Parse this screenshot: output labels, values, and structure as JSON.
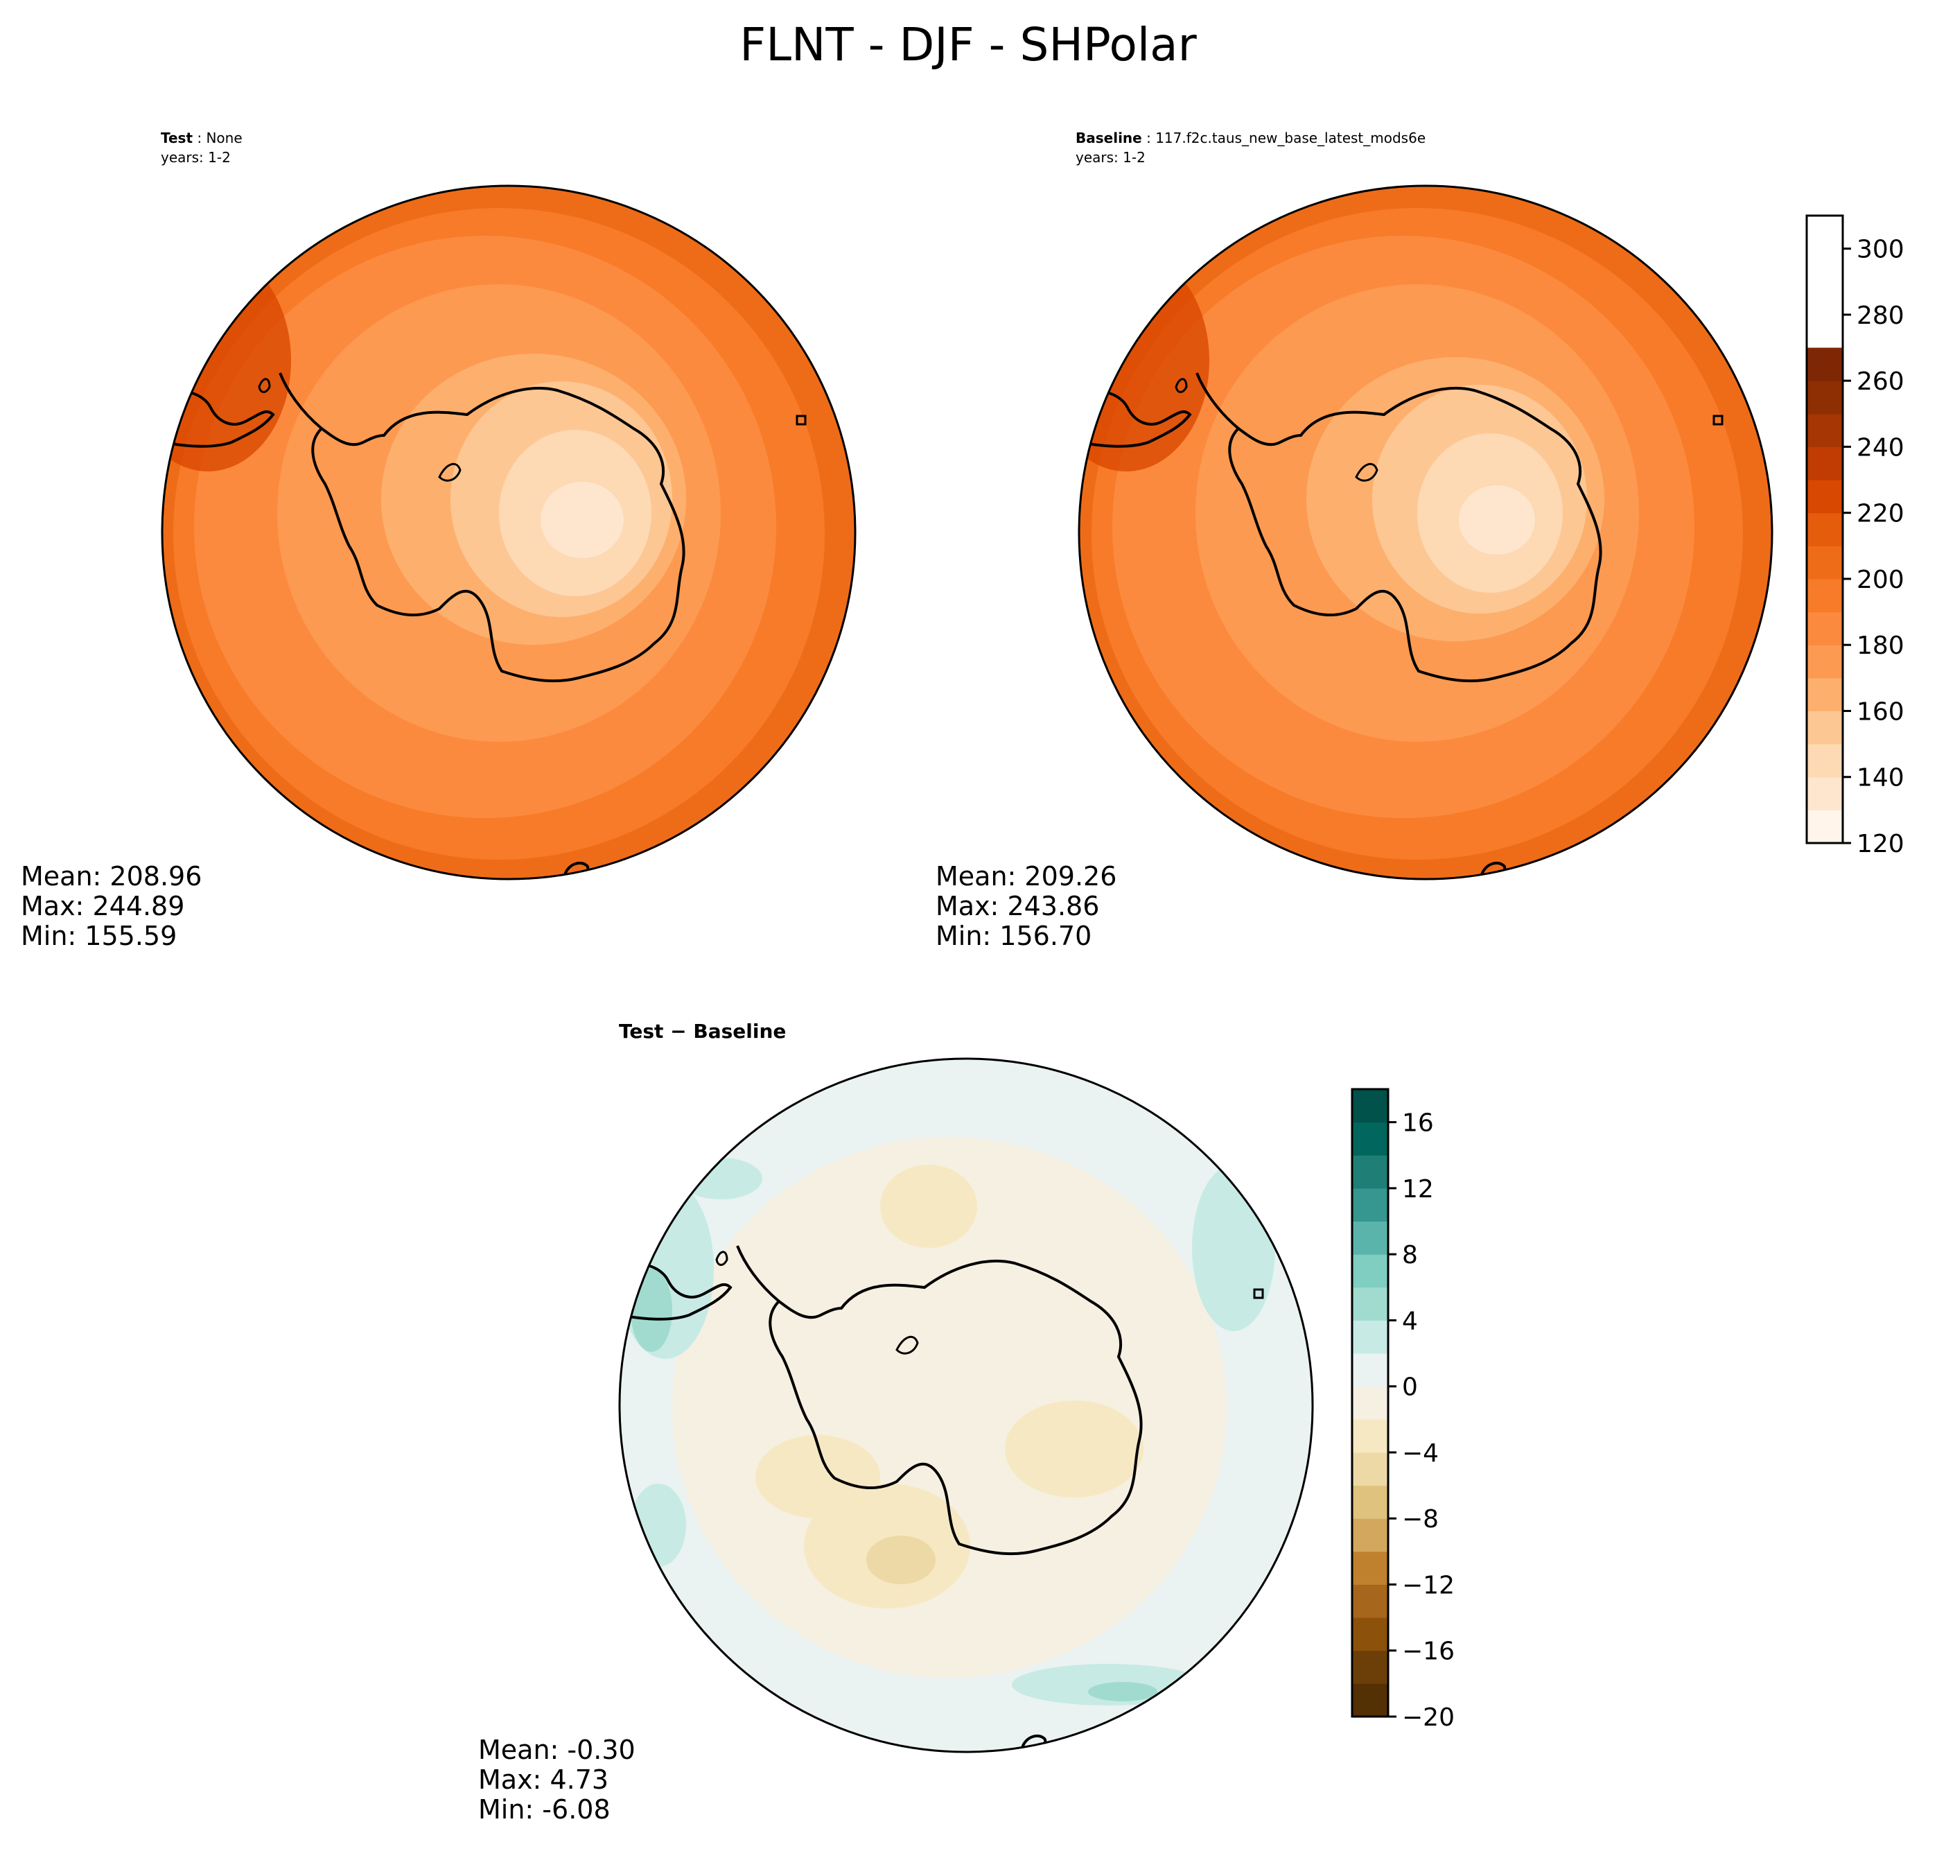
{
  "figure": {
    "title": "FLNT - DJF - SHPolar"
  },
  "panels": {
    "test": {
      "label_bold": "Test",
      "label_value": "None",
      "years": "years: 1-2",
      "stats": {
        "mean": "Mean: 208.96",
        "max": "Max: 244.89",
        "min": "Min: 155.59"
      }
    },
    "baseline": {
      "label_bold": "Baseline",
      "label_value": "117.f2c.taus_new_base_latest_mods6e",
      "years": "years: 1-2",
      "stats": {
        "mean": "Mean: 209.26",
        "max": "Max: 243.86",
        "min": "Min: 156.70"
      }
    },
    "diff": {
      "title": "Test − Baseline",
      "stats": {
        "mean": "Mean: -0.30",
        "max": "Max:  4.73",
        "min": "Min: -6.08"
      }
    }
  },
  "colors": {
    "orange_levels": [
      "#fff5eb",
      "#fee6ce",
      "#fdd9b4",
      "#fdc794",
      "#fdb06e",
      "#fd9a51",
      "#fc8a3e",
      "#f77b29",
      "#ee6c18",
      "#e55c0d",
      "#d94801",
      "#c03c03",
      "#a63603",
      "#8e2e03",
      "#7f2704"
    ],
    "diff_levels": [
      "#543005",
      "#6d3f08",
      "#8c510a",
      "#a6661b",
      "#bf812d",
      "#d4a75e",
      "#dfc27d",
      "#edd9a6",
      "#f6e8c3",
      "#f5f0e1",
      "#eaf3f1",
      "#c7eae5",
      "#a1dbd0",
      "#80cdc1",
      "#5ab4ac",
      "#35978f",
      "#1f7f77",
      "#01665e",
      "#00524a",
      "#003c30"
    ],
    "land_line": "#000000"
  },
  "chart_data": [
    {
      "type": "heatmap",
      "name": "test",
      "projection": "south-polar-stereographic",
      "colormap": "Oranges",
      "levels": [
        120,
        130,
        140,
        150,
        160,
        170,
        180,
        190,
        200,
        210,
        220,
        230,
        240,
        250,
        260,
        270,
        280,
        290,
        300,
        310
      ],
      "summary": {
        "mean": 208.96,
        "max": 244.89,
        "min": 155.59
      }
    },
    {
      "type": "heatmap",
      "name": "baseline",
      "projection": "south-polar-stereographic",
      "colormap": "Oranges",
      "levels": [
        120,
        130,
        140,
        150,
        160,
        170,
        180,
        190,
        200,
        210,
        220,
        230,
        240,
        250,
        260,
        270,
        280,
        290,
        300,
        310
      ],
      "colorbar": {
        "ticks": [
          "120",
          "140",
          "160",
          "180",
          "200",
          "220",
          "240",
          "260",
          "280",
          "300"
        ],
        "range": [
          120,
          310
        ]
      },
      "summary": {
        "mean": 209.26,
        "max": 243.86,
        "min": 156.7
      }
    },
    {
      "type": "heatmap",
      "name": "difference",
      "projection": "south-polar-stereographic",
      "colormap": "BrBG",
      "levels": [
        -20,
        -18,
        -16,
        -14,
        -12,
        -10,
        -8,
        -6,
        -4,
        -2,
        0,
        2,
        4,
        6,
        8,
        10,
        12,
        14,
        16,
        18
      ],
      "colorbar": {
        "ticks": [
          "−20",
          "−16",
          "−12",
          "−8",
          "−4",
          "0",
          "4",
          "8",
          "12",
          "16"
        ],
        "range": [
          -20,
          18
        ]
      },
      "summary": {
        "mean": -0.3,
        "max": 4.73,
        "min": -6.08
      }
    }
  ]
}
